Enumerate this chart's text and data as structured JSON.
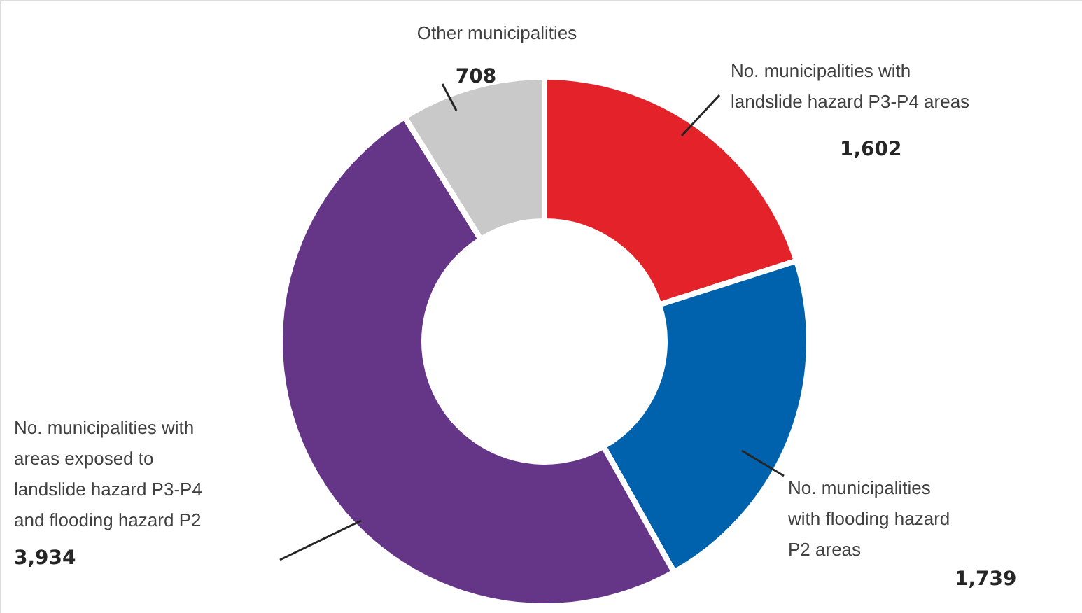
{
  "chart_data": {
    "type": "donut",
    "categories": [
      "No. municipalities with landslide hazard P3-P4 areas",
      "No. municipalities with flooding hazard P2 areas",
      "No. municipalities with areas exposed to landslide hazard P3-P4 and flooding hazard P2",
      "Other municipalities"
    ],
    "values": [
      1602,
      1739,
      3934,
      708
    ],
    "colors": [
      "#e3222a",
      "#0062ad",
      "#653587",
      "#c9c9c9"
    ],
    "value_labels": [
      "1,602",
      "1,739",
      "3,934",
      "708"
    ]
  }
}
